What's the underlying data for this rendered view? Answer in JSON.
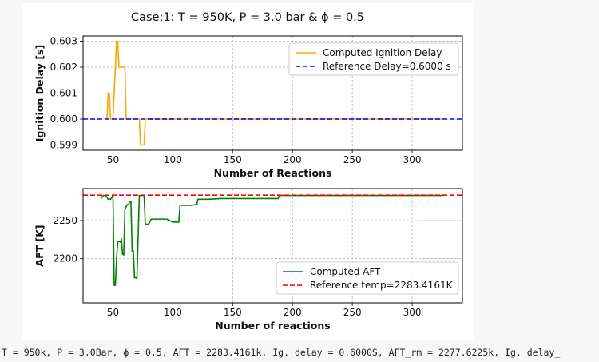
{
  "figure_title": "Case:1:  T = 950K, P = 3.0 bar & ϕ = 0.5",
  "console_output": "T = 950k, P = 3.0Bar, ϕ = 0.5, AFT = 2283.4161k, Ig. delay = 0.6000S, AFT_rm = 2277.6225k, Ig. delay_",
  "colors": {
    "computed_delay": "#ffa500",
    "reference_delay": "#0000ff",
    "computed_aft": "#008000",
    "reference_aft": "#ff0000"
  },
  "chart_data": [
    {
      "type": "line",
      "xlabel": "Number of Reactions",
      "ylabel": "Ignition Delay [s]",
      "xlim": [
        25,
        342
      ],
      "ylim": [
        0.5988,
        0.6032
      ],
      "xticks": [
        "50",
        "100",
        "150",
        "200",
        "250",
        "300"
      ],
      "yticks": [
        "0.599",
        "0.600",
        "0.601",
        "0.602",
        "0.603"
      ],
      "grid": true,
      "legend_position": "upper right",
      "series": [
        {
          "name": "Computed Ignition Delay",
          "style": "solid",
          "x": [
            45,
            46,
            47,
            48,
            50,
            52,
            53,
            54,
            55,
            56,
            57,
            58,
            59,
            60,
            61,
            62,
            63,
            65,
            70,
            72,
            73,
            74,
            75,
            76,
            77,
            80,
            100,
            150,
            200,
            250,
            300,
            325
          ],
          "y": [
            0.6,
            0.601,
            0.601,
            0.6,
            0.6,
            0.602,
            0.603,
            0.603,
            0.602,
            0.602,
            0.602,
            0.602,
            0.602,
            0.602,
            0.6,
            0.6,
            0.6,
            0.6,
            0.6,
            0.6,
            0.599,
            0.599,
            0.599,
            0.599,
            0.6,
            0.6,
            0.6,
            0.6,
            0.6,
            0.6,
            0.6,
            0.6
          ]
        },
        {
          "name": "Reference Delay=0.6000 s",
          "style": "dashed",
          "x": [
            25,
            342
          ],
          "y": [
            0.6,
            0.6
          ]
        }
      ]
    },
    {
      "type": "line",
      "xlabel": "Number of reactions",
      "ylabel": "AFT [K]",
      "xlim": [
        25,
        342
      ],
      "ylim": [
        2142,
        2292
      ],
      "xticks": [
        "50",
        "100",
        "150",
        "200",
        "250",
        "300"
      ],
      "yticks": [
        "2200",
        "2250"
      ],
      "grid": true,
      "legend_position": "lower right",
      "series": [
        {
          "name": "Computed AFT",
          "style": "solid",
          "x": [
            40,
            42,
            44,
            46,
            48,
            50,
            51,
            52,
            53,
            54,
            55,
            56,
            57,
            58,
            59,
            60,
            62,
            63,
            64,
            65,
            66,
            67,
            68,
            69,
            70,
            72,
            73,
            74,
            75,
            76,
            77,
            78,
            80,
            82,
            85,
            90,
            95,
            100,
            101,
            105,
            106,
            107,
            108,
            115,
            120,
            121,
            125,
            130,
            140,
            150,
            160,
            170,
            180,
            188,
            189,
            190,
            200,
            250,
            300,
            325
          ],
          "y": [
            2279,
            2283,
            2283,
            2278,
            2278,
            2283,
            2165,
            2165,
            2200,
            2222,
            2223,
            2222,
            2225,
            2206,
            2205,
            2265,
            2271,
            2271,
            2275,
            2275,
            2210,
            2210,
            2175,
            2175,
            2174,
            2283,
            2283,
            2283,
            2283,
            2283,
            2246,
            2245,
            2246,
            2252,
            2252,
            2252,
            2252,
            2248,
            2248,
            2248,
            2270,
            2270,
            2270,
            2270,
            2271,
            2278,
            2278,
            2278,
            2279,
            2279,
            2279,
            2279,
            2279,
            2279,
            2283,
            2283,
            2283,
            2283,
            2283,
            2283
          ]
        },
        {
          "name": "Reference temp=2283.4161K",
          "style": "dashed",
          "x": [
            25,
            342
          ],
          "y": [
            2283.4161,
            2283.4161
          ]
        }
      ]
    }
  ]
}
